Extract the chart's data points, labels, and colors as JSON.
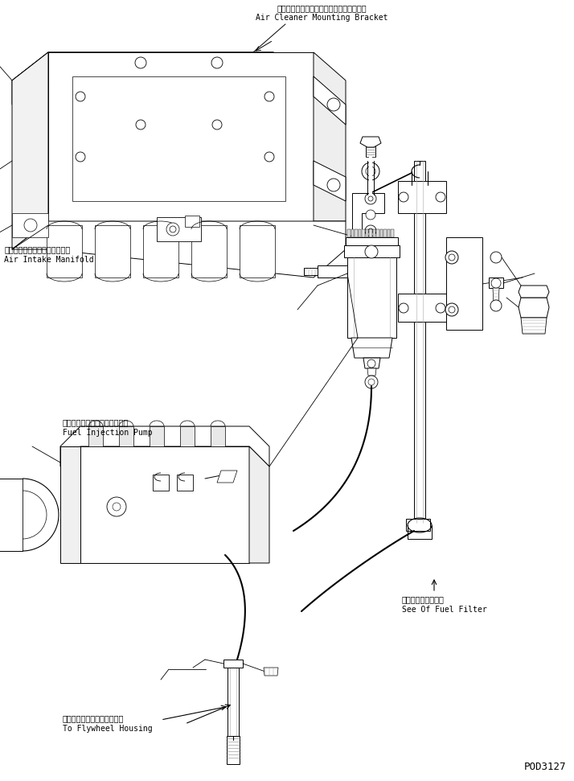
{
  "bg_color": "#ffffff",
  "line_color": "#000000",
  "fig_width": 7.14,
  "fig_height": 9.71,
  "dpi": 100,
  "labels": {
    "top_jp": "エアークリーナマウンティングブラケット",
    "top_en": "Air Cleaner Mounting Bracket",
    "mid_left_jp": "エアーインテークマニホールド",
    "mid_left_en": "Air Intake Manifold",
    "pump_jp": "フェルインジェクションポンプ",
    "pump_en": "Fuel Injection Pump",
    "fuel_jp": "フェルフィルタ参照",
    "fuel_en": "See Of Fuel Filter",
    "flywheel_jp": "フライホイールハウジングへ",
    "flywheel_en": "To Flywheel Housing",
    "part_number": "POD3127"
  }
}
